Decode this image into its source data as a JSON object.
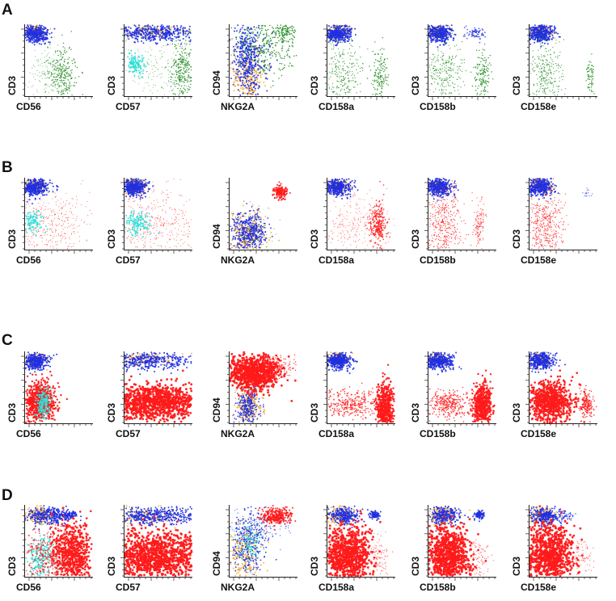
{
  "figure": {
    "colors": {
      "blue": "#1f2fe0",
      "orange": "#f0a020",
      "green": "#1e8a1e",
      "cyan": "#30e0d8",
      "red": "#ff1a1a",
      "axis": "#222222"
    },
    "panels": [
      {
        "label": "A",
        "plots": [
          {
            "xlabel": "CD56",
            "ylabel": "CD3"
          },
          {
            "xlabel": "CD57",
            "ylabel": "CD3"
          },
          {
            "xlabel": "NKG2A",
            "ylabel": "CD94"
          },
          {
            "xlabel": "CD158a",
            "ylabel": "CD3"
          },
          {
            "xlabel": "CD158b",
            "ylabel": "CD3"
          },
          {
            "xlabel": "CD158e",
            "ylabel": "CD3"
          }
        ]
      },
      {
        "label": "B",
        "plots": [
          {
            "xlabel": "CD56",
            "ylabel": "CD3"
          },
          {
            "xlabel": "CD57",
            "ylabel": "CD3"
          },
          {
            "xlabel": "NKG2A",
            "ylabel": "CD94"
          },
          {
            "xlabel": "CD158a",
            "ylabel": "CD3"
          },
          {
            "xlabel": "CD158b",
            "ylabel": "CD3"
          },
          {
            "xlabel": "CD158e",
            "ylabel": "CD3"
          }
        ]
      },
      {
        "label": "C",
        "plots": [
          {
            "xlabel": "CD56",
            "ylabel": "CD3"
          },
          {
            "xlabel": "CD57",
            "ylabel": "CD3"
          },
          {
            "xlabel": "NKG2A",
            "ylabel": "CD94"
          },
          {
            "xlabel": "CD158a",
            "ylabel": "CD3"
          },
          {
            "xlabel": "CD158b",
            "ylabel": "CD3"
          },
          {
            "xlabel": "CD158e",
            "ylabel": "CD3"
          }
        ]
      },
      {
        "label": "D",
        "plots": [
          {
            "xlabel": "CD56",
            "ylabel": "CD3"
          },
          {
            "xlabel": "CD57",
            "ylabel": "CD3"
          },
          {
            "xlabel": "NKG2A",
            "ylabel": "CD94"
          },
          {
            "xlabel": "CD158a",
            "ylabel": "CD3"
          },
          {
            "xlabel": "CD158b",
            "ylabel": "CD3"
          },
          {
            "xlabel": "CD158e",
            "ylabel": "CD3"
          }
        ]
      }
    ]
  }
}
